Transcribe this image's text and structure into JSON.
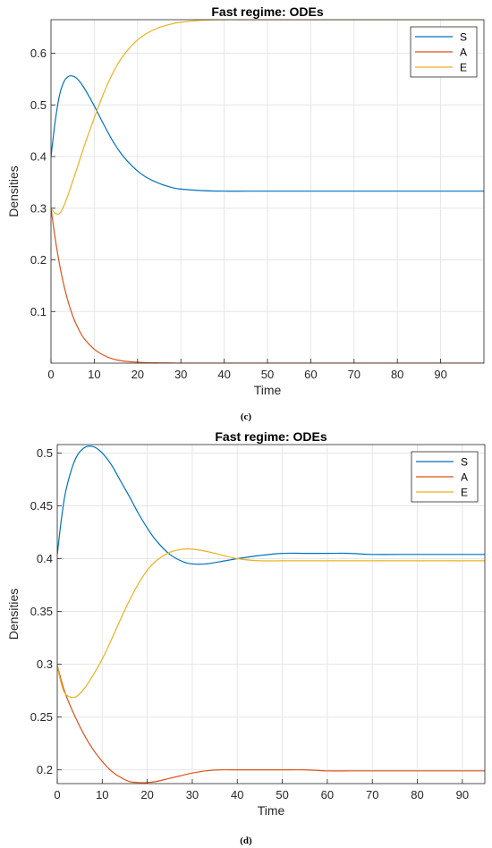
{
  "figure": {
    "caption_c": "(c)",
    "caption_d": "(d)"
  },
  "colors": {
    "S": "#0072bd",
    "A": "#d95319",
    "E": "#edb120",
    "grid": "#e6e6e6",
    "axis": "#262626"
  },
  "chart_data": [
    {
      "type": "line",
      "title": "Fast regime: ODEs",
      "xlabel": "Time",
      "ylabel": "Densities",
      "xlim": [
        0,
        100
      ],
      "ylim": [
        0.0,
        0.665
      ],
      "xticks": [
        0,
        10,
        20,
        30,
        40,
        50,
        60,
        70,
        80,
        90
      ],
      "xtick_labels": [
        "0",
        "10",
        "20",
        "30",
        "40",
        "50",
        "60",
        "70",
        "80",
        "90"
      ],
      "yticks": [
        0.1,
        0.2,
        0.3,
        0.4,
        0.5,
        0.6
      ],
      "ytick_labels": [
        "0.1",
        "0.2",
        "0.3",
        "0.4",
        "0.5",
        "0.6"
      ],
      "grid": true,
      "legend_position": "top-right",
      "x": [
        0,
        1,
        2,
        3,
        4,
        5,
        6,
        7,
        8,
        10,
        12,
        14,
        16,
        18,
        20,
        22,
        25,
        28,
        30,
        35,
        40,
        45,
        50,
        60,
        70,
        80,
        90,
        100
      ],
      "series": [
        {
          "name": "S",
          "values": [
            0.4,
            0.47,
            0.52,
            0.545,
            0.555,
            0.556,
            0.551,
            0.541,
            0.528,
            0.498,
            0.465,
            0.434,
            0.408,
            0.388,
            0.372,
            0.36,
            0.348,
            0.34,
            0.337,
            0.334,
            0.333,
            0.333,
            0.333,
            0.333,
            0.333,
            0.333,
            0.333,
            0.333
          ]
        },
        {
          "name": "A",
          "values": [
            0.3,
            0.24,
            0.19,
            0.15,
            0.118,
            0.092,
            0.072,
            0.056,
            0.044,
            0.027,
            0.016,
            0.009,
            0.005,
            0.003,
            0.002,
            0.001,
            0.0005,
            0.0002,
            0.0001,
            0,
            0,
            0,
            0,
            0,
            0,
            0,
            0,
            0
          ]
        },
        {
          "name": "E",
          "values": [
            0.3,
            0.29,
            0.29,
            0.305,
            0.327,
            0.352,
            0.377,
            0.403,
            0.428,
            0.475,
            0.519,
            0.557,
            0.587,
            0.609,
            0.626,
            0.638,
            0.65,
            0.657,
            0.66,
            0.664,
            0.665,
            0.665,
            0.665,
            0.665,
            0.665,
            0.665,
            0.665,
            0.665
          ]
        }
      ]
    },
    {
      "type": "line",
      "title": "Fast regime: ODEs",
      "xlabel": "Time",
      "ylabel": "Densities",
      "xlim": [
        0,
        95
      ],
      "ylim": [
        0.187,
        0.508
      ],
      "xticks": [
        0,
        10,
        20,
        30,
        40,
        50,
        60,
        70,
        80,
        90
      ],
      "xtick_labels": [
        "0",
        "10",
        "20",
        "30",
        "40",
        "50",
        "60",
        "70",
        "80",
        "90"
      ],
      "yticks": [
        0.2,
        0.25,
        0.3,
        0.35,
        0.4,
        0.45,
        0.5
      ],
      "ytick_labels": [
        "0.2",
        "0.25",
        "0.3",
        "0.35",
        "0.4",
        "0.45",
        "0.5"
      ],
      "grid": true,
      "legend_position": "top-right",
      "x": [
        0,
        1,
        2,
        4,
        6,
        8,
        10,
        12,
        14,
        16,
        18,
        20,
        22,
        25,
        28,
        30,
        33,
        36,
        40,
        45,
        50,
        55,
        60,
        65,
        70,
        80,
        90,
        95
      ],
      "series": [
        {
          "name": "S",
          "values": [
            0.404,
            0.44,
            0.466,
            0.494,
            0.505,
            0.506,
            0.5,
            0.489,
            0.474,
            0.459,
            0.443,
            0.429,
            0.417,
            0.404,
            0.397,
            0.395,
            0.395,
            0.397,
            0.4,
            0.403,
            0.405,
            0.405,
            0.405,
            0.405,
            0.404,
            0.404,
            0.404,
            0.404
          ]
        },
        {
          "name": "A",
          "values": [
            0.299,
            0.283,
            0.27,
            0.25,
            0.233,
            0.219,
            0.208,
            0.199,
            0.193,
            0.189,
            0.188,
            0.188,
            0.189,
            0.192,
            0.195,
            0.197,
            0.199,
            0.2,
            0.2,
            0.2,
            0.2,
            0.2,
            0.199,
            0.199,
            0.199,
            0.199,
            0.199,
            0.199
          ]
        },
        {
          "name": "E",
          "values": [
            0.298,
            0.28,
            0.271,
            0.269,
            0.277,
            0.29,
            0.305,
            0.323,
            0.342,
            0.36,
            0.376,
            0.389,
            0.398,
            0.406,
            0.409,
            0.409,
            0.407,
            0.404,
            0.4,
            0.398,
            0.398,
            0.398,
            0.398,
            0.398,
            0.398,
            0.398,
            0.398,
            0.398
          ]
        }
      ]
    }
  ]
}
